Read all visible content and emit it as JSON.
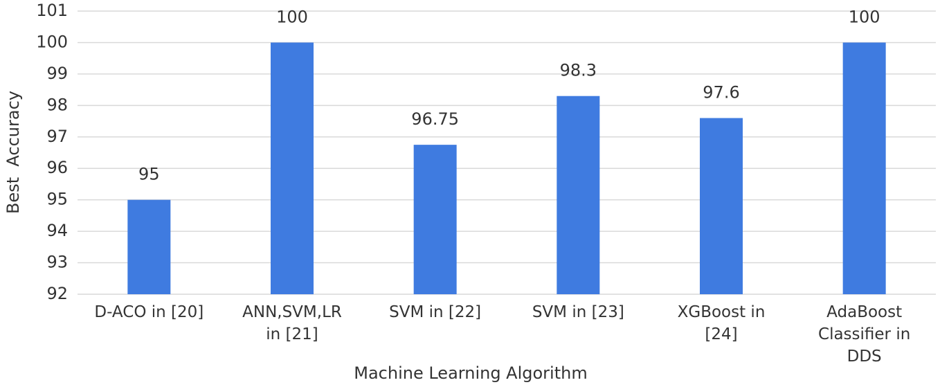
{
  "chart_data": {
    "type": "bar",
    "categories": [
      "D-ACO in [20]",
      "ANN,SVM,LR in [21]",
      "SVM in [22]",
      "SVM in [23]",
      "XGBoost in [24]",
      "AdaBoost Classifier in DDS"
    ],
    "values": [
      95,
      100,
      96.75,
      98.3,
      97.6,
      100
    ],
    "color": "#3f7be0",
    "x_label": "Machine Learning Algorithm",
    "y_label": "Best  Accuracy",
    "ylim": [
      92,
      101
    ],
    "yticks": [
      92,
      93,
      94,
      95,
      96,
      97,
      98,
      99,
      100,
      101
    ],
    "grid": true
  }
}
